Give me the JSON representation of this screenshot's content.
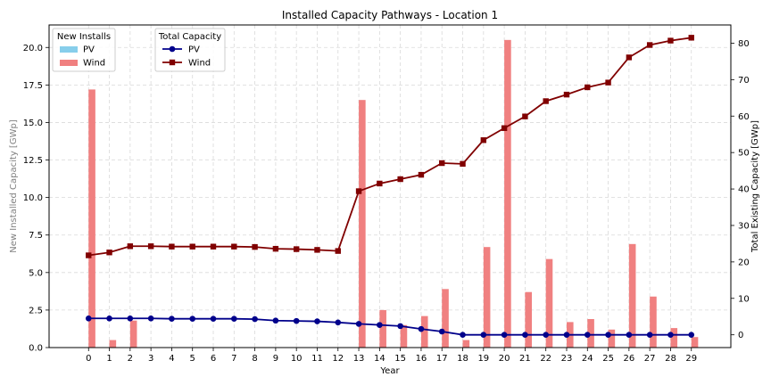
{
  "chart_data": {
    "type": "bar+line",
    "title": "Installed Capacity Pathways - Location 1",
    "xlabel": "Year",
    "ylabel_left": "New Installed Capacity [GWp]",
    "ylabel_right": "Total Existing Capacity [GWp]",
    "x": [
      0,
      1,
      2,
      3,
      4,
      5,
      6,
      7,
      8,
      9,
      10,
      11,
      12,
      13,
      14,
      15,
      16,
      17,
      18,
      19,
      20,
      21,
      22,
      23,
      24,
      25,
      26,
      27,
      28,
      29
    ],
    "ylim_left": [
      0,
      21.5
    ],
    "ylim_right": [
      -3.5,
      85
    ],
    "yticks_left": [
      0,
      2.5,
      5,
      7.5,
      10,
      12.5,
      15,
      17.5,
      20
    ],
    "ytick_labels_left": [
      "0.0",
      "2.5",
      "5.0",
      "7.5",
      "10.0",
      "12.5",
      "15.0",
      "17.5",
      "20.0"
    ],
    "yticks_right": [
      0,
      10,
      20,
      30,
      40,
      50,
      60,
      70,
      80
    ],
    "ytick_labels_right": [
      "0",
      "10",
      "20",
      "30",
      "40",
      "50",
      "60",
      "70",
      "80"
    ],
    "grid": true,
    "bar_series": [
      {
        "name": "PV",
        "color": "#87ceeb",
        "values": [
          0,
          0,
          0,
          0,
          0,
          0,
          0,
          0,
          0,
          0,
          0,
          0,
          0,
          0,
          0,
          0,
          0,
          0,
          0,
          0,
          0,
          0,
          0,
          0,
          0,
          0,
          0,
          0,
          0,
          0
        ]
      },
      {
        "name": "Wind",
        "color": "#f08080",
        "values": [
          17.2,
          0.5,
          1.8,
          0,
          0,
          0,
          0,
          0,
          0,
          0,
          0,
          0,
          0,
          16.5,
          2.5,
          1.5,
          2.1,
          3.9,
          0.5,
          6.7,
          20.5,
          3.7,
          5.9,
          1.7,
          1.9,
          1.2,
          6.9,
          3.4,
          1.3,
          0.7
        ]
      }
    ],
    "line_series": [
      {
        "name": "PV",
        "color": "#00008b",
        "marker": "circle",
        "values": [
          4.5,
          4.5,
          4.5,
          4.5,
          4.4,
          4.4,
          4.4,
          4.4,
          4.3,
          3.9,
          3.8,
          3.7,
          3.4,
          3.0,
          2.7,
          2.4,
          1.6,
          0.9,
          0,
          0,
          0,
          0,
          0,
          0,
          0,
          0,
          0,
          0,
          0,
          0
        ]
      },
      {
        "name": "Wind",
        "color": "#800000",
        "marker": "square",
        "values": [
          21.8,
          22.6,
          24.3,
          24.3,
          24.2,
          24.2,
          24.2,
          24.2,
          24.1,
          23.6,
          23.5,
          23.3,
          23.0,
          39.4,
          41.5,
          42.7,
          43.9,
          47.1,
          46.9,
          53.4,
          56.7,
          59.9,
          64.1,
          65.9,
          67.9,
          69.2,
          76.1,
          79.5,
          80.7,
          81.5
        ]
      }
    ],
    "legends": [
      {
        "title": "New Installs",
        "entries": [
          "PV",
          "Wind"
        ],
        "placement": "top-left"
      },
      {
        "title": "Total Capacity",
        "entries": [
          "PV",
          "Wind"
        ],
        "placement": "top-left"
      }
    ]
  }
}
